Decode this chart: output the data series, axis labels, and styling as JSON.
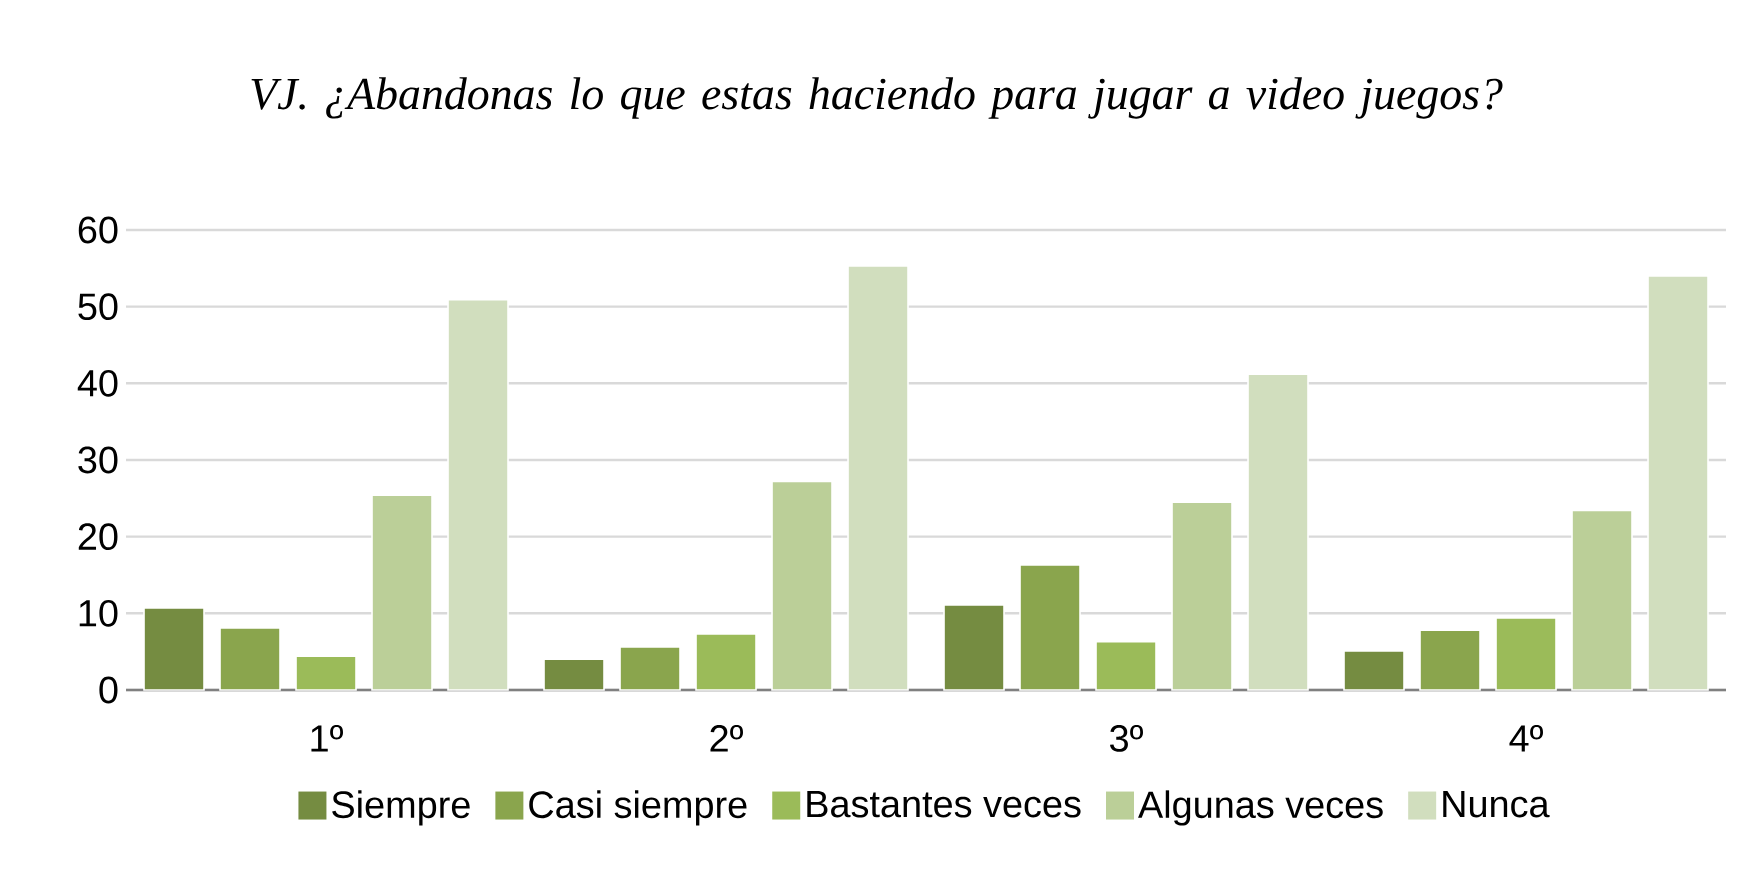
{
  "chart_data": {
    "type": "bar",
    "title": "VJ. ¿Abandonas lo que estas haciendo para jugar a video juegos?",
    "categories": [
      "1º",
      "2º",
      "3º",
      "4º"
    ],
    "series": [
      {
        "name": "Siempre",
        "color": "#758c41",
        "values": [
          10.7,
          4.0,
          11.1,
          5.1
        ]
      },
      {
        "name": "Casi siempre",
        "color": "#8aa54d",
        "values": [
          8.1,
          5.6,
          16.3,
          7.8
        ]
      },
      {
        "name": "Bastantes veces",
        "color": "#9bbb59",
        "values": [
          4.4,
          7.3,
          6.3,
          9.4
        ]
      },
      {
        "name": "Algunas veces",
        "color": "#bbcf98",
        "values": [
          25.4,
          27.2,
          24.5,
          23.4
        ]
      },
      {
        "name": "Nunca",
        "color": "#d1debe",
        "values": [
          50.9,
          55.3,
          41.2,
          54.0
        ]
      }
    ],
    "ylim": [
      0,
      60
    ],
    "yticks": [
      0,
      10,
      20,
      30,
      40,
      50,
      60
    ],
    "grid": "y",
    "legend": "bottom"
  }
}
